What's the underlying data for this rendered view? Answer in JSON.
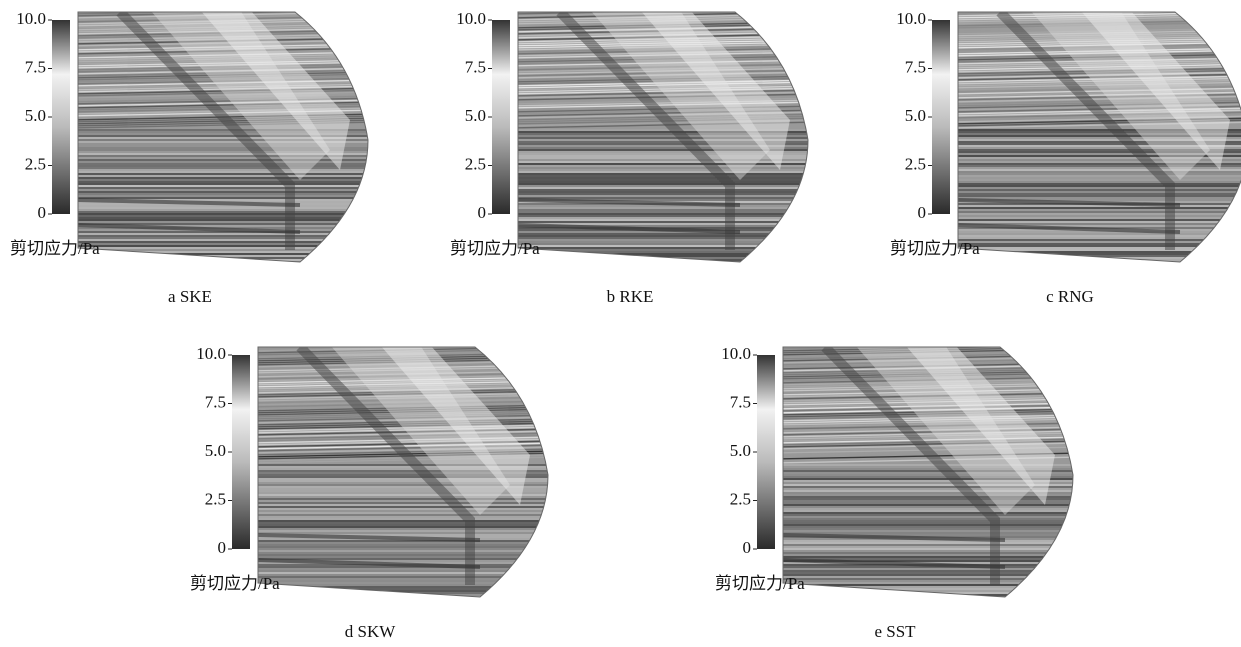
{
  "panels": [
    {
      "ticks": [
        "10.0",
        "7.5",
        "5.0",
        "2.5",
        "0"
      ],
      "unit": "剪切应力/Pa",
      "caption": "a SKE"
    },
    {
      "ticks": [
        "10.0",
        "7.5",
        "5.0",
        "2.5",
        "0"
      ],
      "unit": "剪切应力/Pa",
      "caption": "b RKE"
    },
    {
      "ticks": [
        "10.0",
        "7.5",
        "5.0",
        "2.5",
        "0"
      ],
      "unit": "剪切应力/Pa",
      "caption": "c RNG"
    },
    {
      "ticks": [
        "10.0",
        "7.5",
        "5.0",
        "2.5",
        "0"
      ],
      "unit": "剪切应力/Pa",
      "caption": "d SKW"
    },
    {
      "ticks": [
        "10.0",
        "7.5",
        "5.0",
        "2.5",
        "0"
      ],
      "unit": "剪切应力/Pa",
      "caption": "e SST"
    }
  ]
}
